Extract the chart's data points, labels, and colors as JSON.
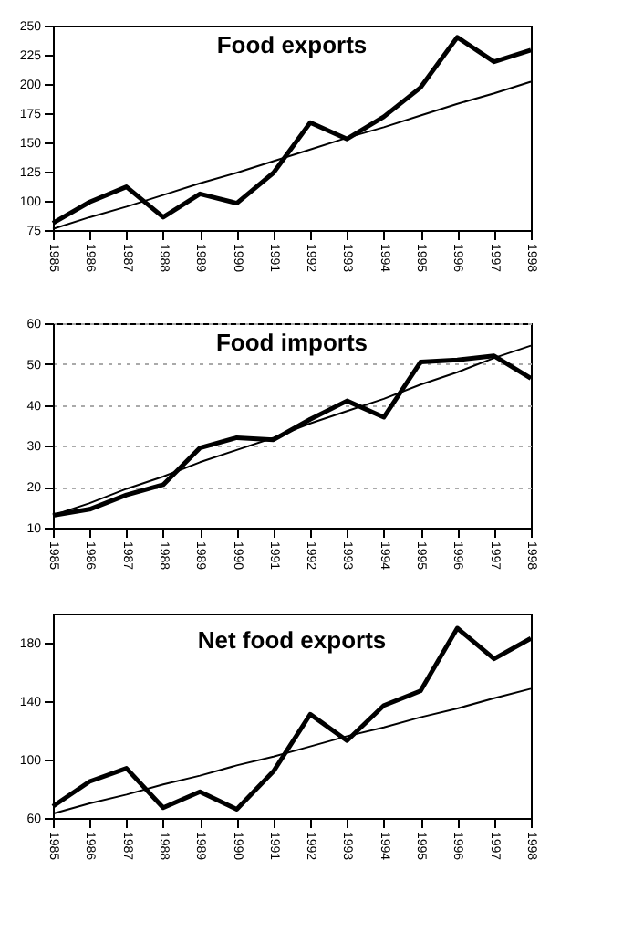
{
  "chart_data": [
    {
      "type": "line",
      "title": "Food exports",
      "categories": [
        "1985",
        "1986",
        "1987",
        "1988",
        "1989",
        "1990",
        "1991",
        "1992",
        "1993",
        "1994",
        "1995",
        "1996",
        "1997",
        "1998"
      ],
      "ylim": [
        75,
        250
      ],
      "yticks": [
        75,
        100,
        125,
        150,
        175,
        200,
        225,
        250
      ],
      "grid": false,
      "series": [
        {
          "color": "#000000",
          "values": [
            81,
            99,
            112,
            86,
            106,
            98,
            124,
            167,
            153,
            172,
            197,
            240,
            219,
            229
          ]
        },
        {
          "color": "#000000",
          "values": [
            76,
            86,
            95,
            105,
            115,
            124,
            134,
            144,
            154,
            163,
            173,
            183,
            192,
            202
          ]
        }
      ]
    },
    {
      "type": "line",
      "title": "Food imports",
      "categories": [
        "1985",
        "1986",
        "1987",
        "1988",
        "1989",
        "1990",
        "1991",
        "1992",
        "1993",
        "1994",
        "1995",
        "1996",
        "1997",
        "1998"
      ],
      "ylim": [
        10,
        60
      ],
      "yticks": [
        10,
        20,
        30,
        40,
        50,
        60
      ],
      "grid": "y",
      "series": [
        {
          "color": "#000000",
          "values": [
            13,
            14.5,
            18,
            20.5,
            29.5,
            32,
            31.5,
            36.5,
            41,
            37,
            50.5,
            51,
            52,
            46.5
          ]
        },
        {
          "color": "#000000",
          "values": [
            13,
            16,
            19.5,
            22.5,
            26,
            29,
            32,
            35.5,
            38.5,
            41.5,
            45,
            48,
            51.5,
            54.5
          ]
        }
      ]
    },
    {
      "type": "line",
      "title": "Net food exports",
      "categories": [
        "1985",
        "1986",
        "1987",
        "1988",
        "1989",
        "1990",
        "1991",
        "1992",
        "1993",
        "1994",
        "1995",
        "1996",
        "1997",
        "1998"
      ],
      "ylim": [
        60,
        200
      ],
      "yticks": [
        60,
        100,
        140,
        180
      ],
      "grid": false,
      "series": [
        {
          "color": "#000000",
          "values": [
            68,
            85,
            94,
            67,
            78,
            66,
            92,
            131,
            113,
            137,
            147,
            190,
            169,
            183
          ]
        },
        {
          "color": "#000000",
          "values": [
            63,
            70,
            76,
            83,
            89,
            96,
            102,
            109,
            116,
            122,
            129,
            135,
            142,
            148.5
          ]
        }
      ]
    }
  ]
}
